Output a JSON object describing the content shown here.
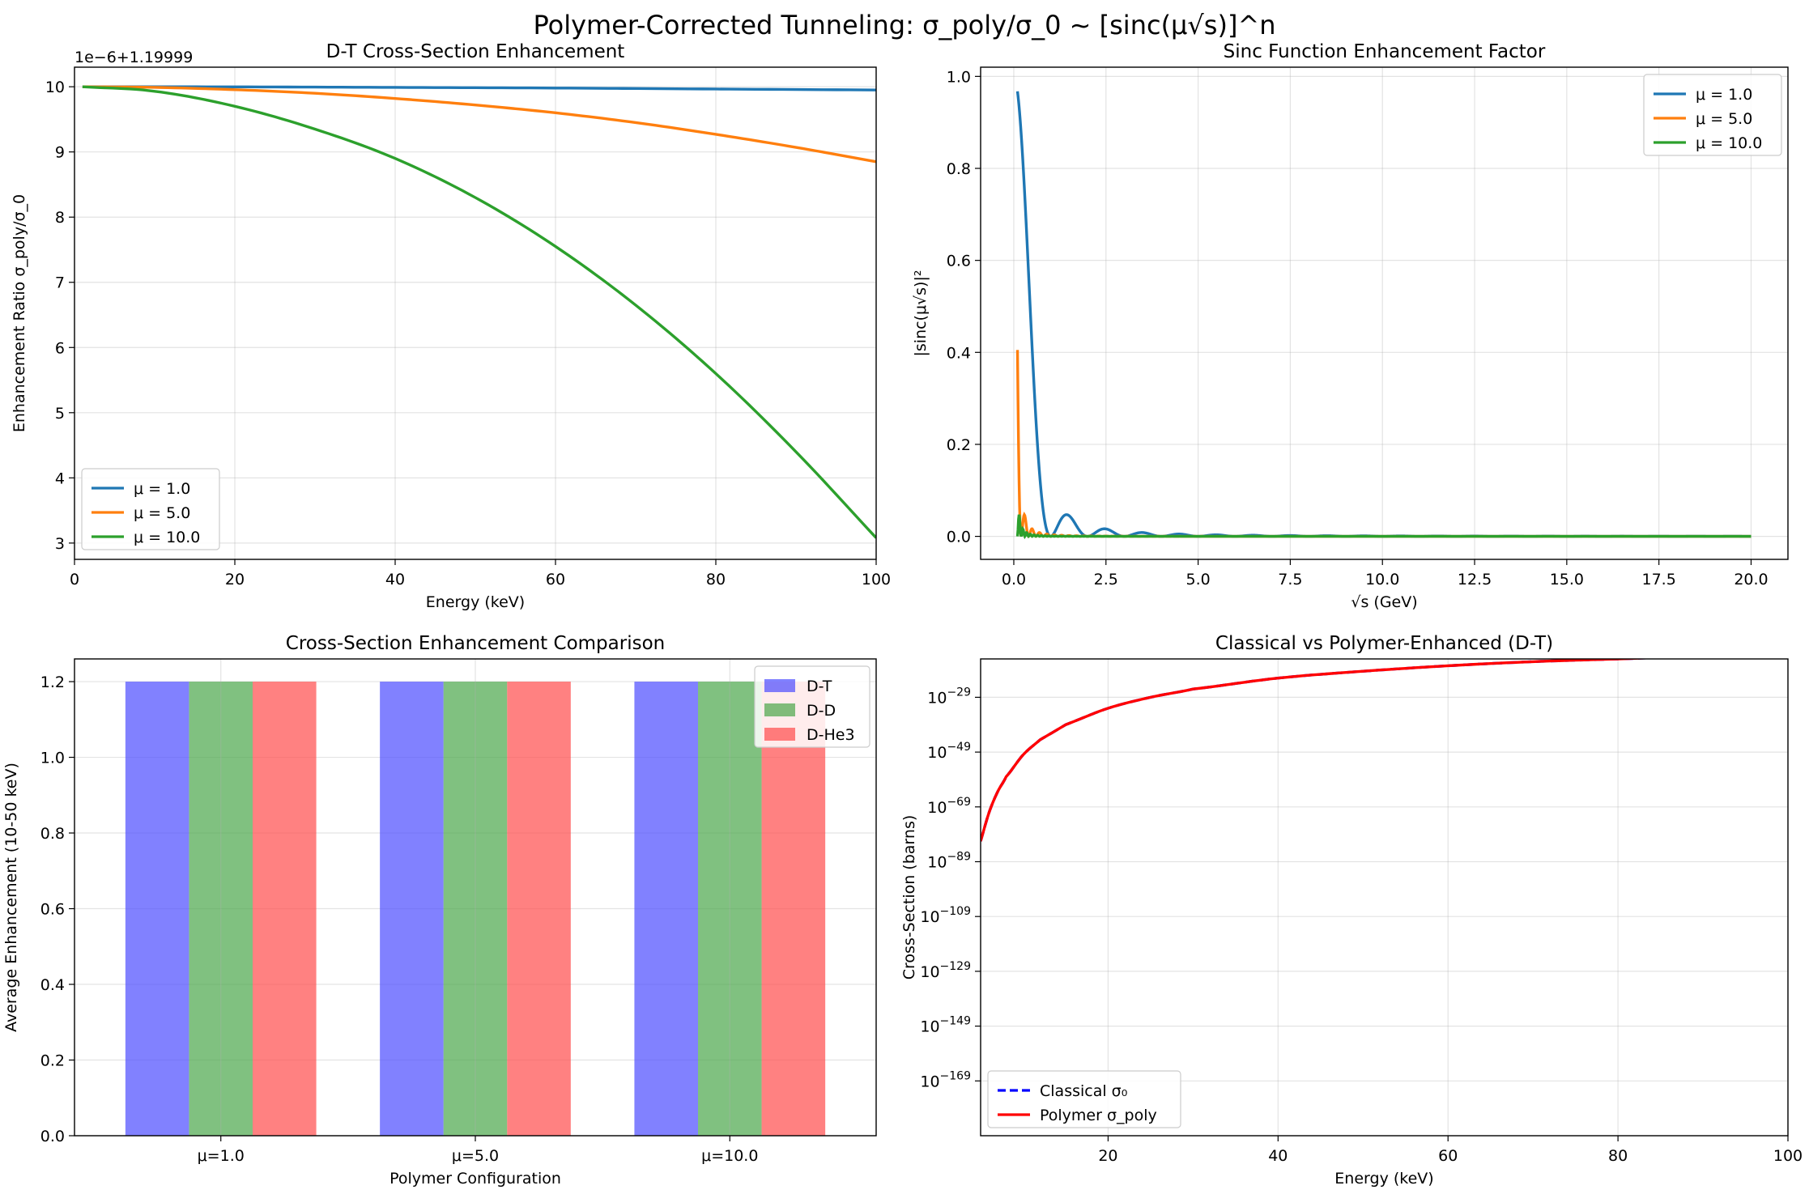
{
  "figure": {
    "suptitle": "Polymer-Corrected Tunneling: σ_poly/σ_0 ~ [sinc(μ√s)]^n"
  },
  "colors": {
    "blue": "#1f77b4",
    "orange": "#ff7f0e",
    "green": "#2ca02c",
    "bar_blue": "#4b4bff",
    "bar_green": "#4aa64a",
    "bar_red": "#ff4b4b",
    "classical": "#0000ff",
    "polymer": "#ff0000"
  },
  "chart_data": [
    {
      "id": "dt",
      "type": "line",
      "title": "D-T Cross-Section Enhancement",
      "xlabel": "Energy (keV)",
      "ylabel": "Enhancement Ratio σ_poly/σ_0",
      "offset_text": "1e−6+1.19999",
      "xlim": [
        0,
        100
      ],
      "ylim": [
        2.75,
        10.3
      ],
      "xticks": [
        0,
        20,
        40,
        60,
        80,
        100
      ],
      "yticks": [
        3,
        4,
        5,
        6,
        7,
        8,
        9,
        10
      ],
      "grid": true,
      "legend": "lower left",
      "series": [
        {
          "name": "μ = 1.0",
          "color": "#1f77b4",
          "x": [
            1,
            20,
            40,
            60,
            80,
            100
          ],
          "y": [
            10.0,
            9.998,
            9.99,
            9.98,
            9.965,
            9.95
          ]
        },
        {
          "name": "μ = 5.0",
          "color": "#ff7f0e",
          "x": [
            1,
            10,
            20,
            30,
            40,
            50,
            60,
            70,
            80,
            90,
            100
          ],
          "y": [
            10.0,
            9.99,
            9.955,
            9.9,
            9.82,
            9.72,
            9.6,
            9.45,
            9.27,
            9.07,
            8.85
          ]
        },
        {
          "name": "μ = 10.0",
          "color": "#2ca02c",
          "x": [
            1,
            10,
            20,
            30,
            40,
            50,
            60,
            70,
            80,
            90,
            100
          ],
          "y": [
            10.0,
            9.93,
            9.7,
            9.35,
            8.9,
            8.3,
            7.55,
            6.65,
            5.6,
            4.4,
            3.08
          ]
        }
      ]
    },
    {
      "id": "sinc",
      "type": "line",
      "title": "Sinc Function Enhancement Factor",
      "xlabel": "√s (GeV)",
      "ylabel": "|sinc(μ√s)|²",
      "xlim": [
        -0.9,
        21.0
      ],
      "ylim": [
        -0.05,
        1.02
      ],
      "xticks": [
        0.0,
        2.5,
        5.0,
        7.5,
        10.0,
        12.5,
        15.0,
        17.5,
        20.0
      ],
      "xtick_labels": [
        "0.0",
        "2.5",
        "5.0",
        "7.5",
        "10.0",
        "12.5",
        "15.0",
        "17.5",
        "20.0"
      ],
      "yticks": [
        0.0,
        0.2,
        0.4,
        0.6,
        0.8,
        1.0
      ],
      "ytick_labels": [
        "0.0",
        "0.2",
        "0.4",
        "0.6",
        "0.8",
        "1.0"
      ],
      "grid": true,
      "legend": "upper right",
      "series": [
        {
          "name": "μ = 1.0",
          "color": "#1f77b4",
          "formula": "sinc2",
          "mu": 1.0
        },
        {
          "name": "μ = 5.0",
          "color": "#ff7f0e",
          "formula": "sinc2",
          "mu": 5.0
        },
        {
          "name": "μ = 10.0",
          "color": "#2ca02c",
          "formula": "sinc2",
          "mu": 10.0
        }
      ],
      "x_range": [
        0.1,
        20.0
      ]
    },
    {
      "id": "bars",
      "type": "bar",
      "title": "Cross-Section Enhancement Comparison",
      "xlabel": "Polymer Configuration",
      "ylabel": "Average Enhancement (10-50 keV)",
      "categories": [
        "μ=1.0",
        "μ=5.0",
        "μ=10.0"
      ],
      "ylim": [
        0,
        1.26
      ],
      "yticks": [
        0.0,
        0.2,
        0.4,
        0.6,
        0.8,
        1.0,
        1.2
      ],
      "ytick_labels": [
        "0.0",
        "0.2",
        "0.4",
        "0.6",
        "0.8",
        "1.0",
        "1.2"
      ],
      "grid": true,
      "legend": "upper right",
      "series": [
        {
          "name": "D-T",
          "color": "#4b4bff",
          "values": [
            1.2,
            1.2,
            1.2
          ]
        },
        {
          "name": "D-D",
          "color": "#4aa64a",
          "values": [
            1.2,
            1.2,
            1.2
          ]
        },
        {
          "name": "D-He3",
          "color": "#ff4b4b",
          "values": [
            1.2,
            1.2,
            1.2
          ]
        }
      ]
    },
    {
      "id": "xsec",
      "type": "line",
      "title": "Classical vs Polymer-Enhanced (D-T)",
      "xlabel": "Energy (keV)",
      "ylabel": "Cross-Section (barns)",
      "xlim": [
        5,
        100
      ],
      "ylim_log10": [
        -189,
        -15
      ],
      "yscale": "log",
      "xticks": [
        20,
        40,
        60,
        80,
        100
      ],
      "ytick_exponents": [
        -29,
        -49,
        -69,
        -89,
        -109,
        -129,
        -149,
        -169
      ],
      "grid": true,
      "legend": "lower left",
      "series": [
        {
          "name": "Classical σ₀",
          "color": "#0000ff",
          "dash": true,
          "x": [
            5,
            6,
            7,
            8,
            10,
            12,
            15,
            20,
            25,
            30,
            40,
            50,
            60,
            70,
            80,
            90,
            100
          ],
          "log10_y": [
            -81.5,
            -71.0,
            -63.5,
            -58.0,
            -50.0,
            -44.5,
            -39.0,
            -33.0,
            -29.0,
            -26.0,
            -22.0,
            -19.5,
            -17.5,
            -16.0,
            -15.0,
            -14.0,
            -13.5
          ]
        },
        {
          "name": "Polymer σ_poly",
          "color": "#ff0000",
          "dash": false,
          "x": [
            5,
            6,
            7,
            8,
            10,
            12,
            15,
            20,
            25,
            30,
            40,
            50,
            60,
            70,
            80,
            90,
            100
          ],
          "log10_y": [
            -81.5,
            -71.0,
            -63.5,
            -58.0,
            -50.0,
            -44.5,
            -39.0,
            -33.0,
            -29.0,
            -26.0,
            -22.0,
            -19.5,
            -17.5,
            -16.0,
            -15.0,
            -14.0,
            -13.5
          ]
        }
      ]
    }
  ]
}
